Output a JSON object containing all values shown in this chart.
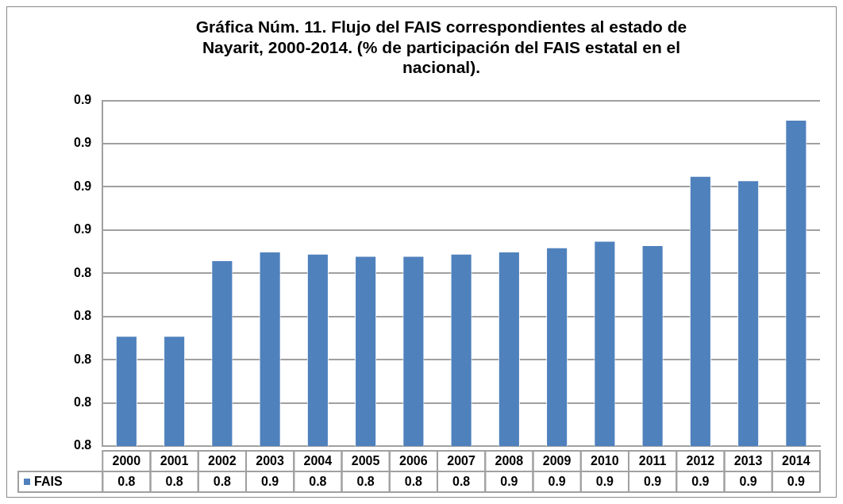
{
  "chart_data": {
    "type": "bar",
    "title": "Gráfica Núm. 11. Flujo del FAIS correspondientes al estado de Nayarit, 2000-2014. (% de participación del FAIS estatal en el nacional).",
    "categories": [
      "2000",
      "2001",
      "2002",
      "2003",
      "2004",
      "2005",
      "2006",
      "2007",
      "2008",
      "2009",
      "2010",
      "2011",
      "2012",
      "2013",
      "2014"
    ],
    "series": [
      {
        "name": "FAIS",
        "color": "#4f81bd",
        "values": [
          0.811,
          0.811,
          0.846,
          0.85,
          0.849,
          0.848,
          0.848,
          0.849,
          0.85,
          0.852,
          0.855,
          0.853,
          0.885,
          0.883,
          0.911
        ],
        "value_labels": [
          "0.8",
          "0.8",
          "0.8",
          "0.9",
          "0.8",
          "0.8",
          "0.8",
          "0.8",
          "0.9",
          "0.9",
          "0.9",
          "0.9",
          "0.9",
          "0.9",
          "0.9"
        ]
      }
    ],
    "ylim": [
      0.76,
      0.92
    ],
    "yticks": [
      {
        "value": 0.76,
        "label": "0.8"
      },
      {
        "value": 0.78,
        "label": "0.8"
      },
      {
        "value": 0.8,
        "label": "0.8"
      },
      {
        "value": 0.82,
        "label": "0.8"
      },
      {
        "value": 0.84,
        "label": "0.8"
      },
      {
        "value": 0.86,
        "label": "0.9"
      },
      {
        "value": 0.88,
        "label": "0.9"
      },
      {
        "value": 0.9,
        "label": "0.9"
      },
      {
        "value": 0.92,
        "label": "0.9"
      }
    ],
    "grid": "y",
    "legend": "bottom"
  }
}
